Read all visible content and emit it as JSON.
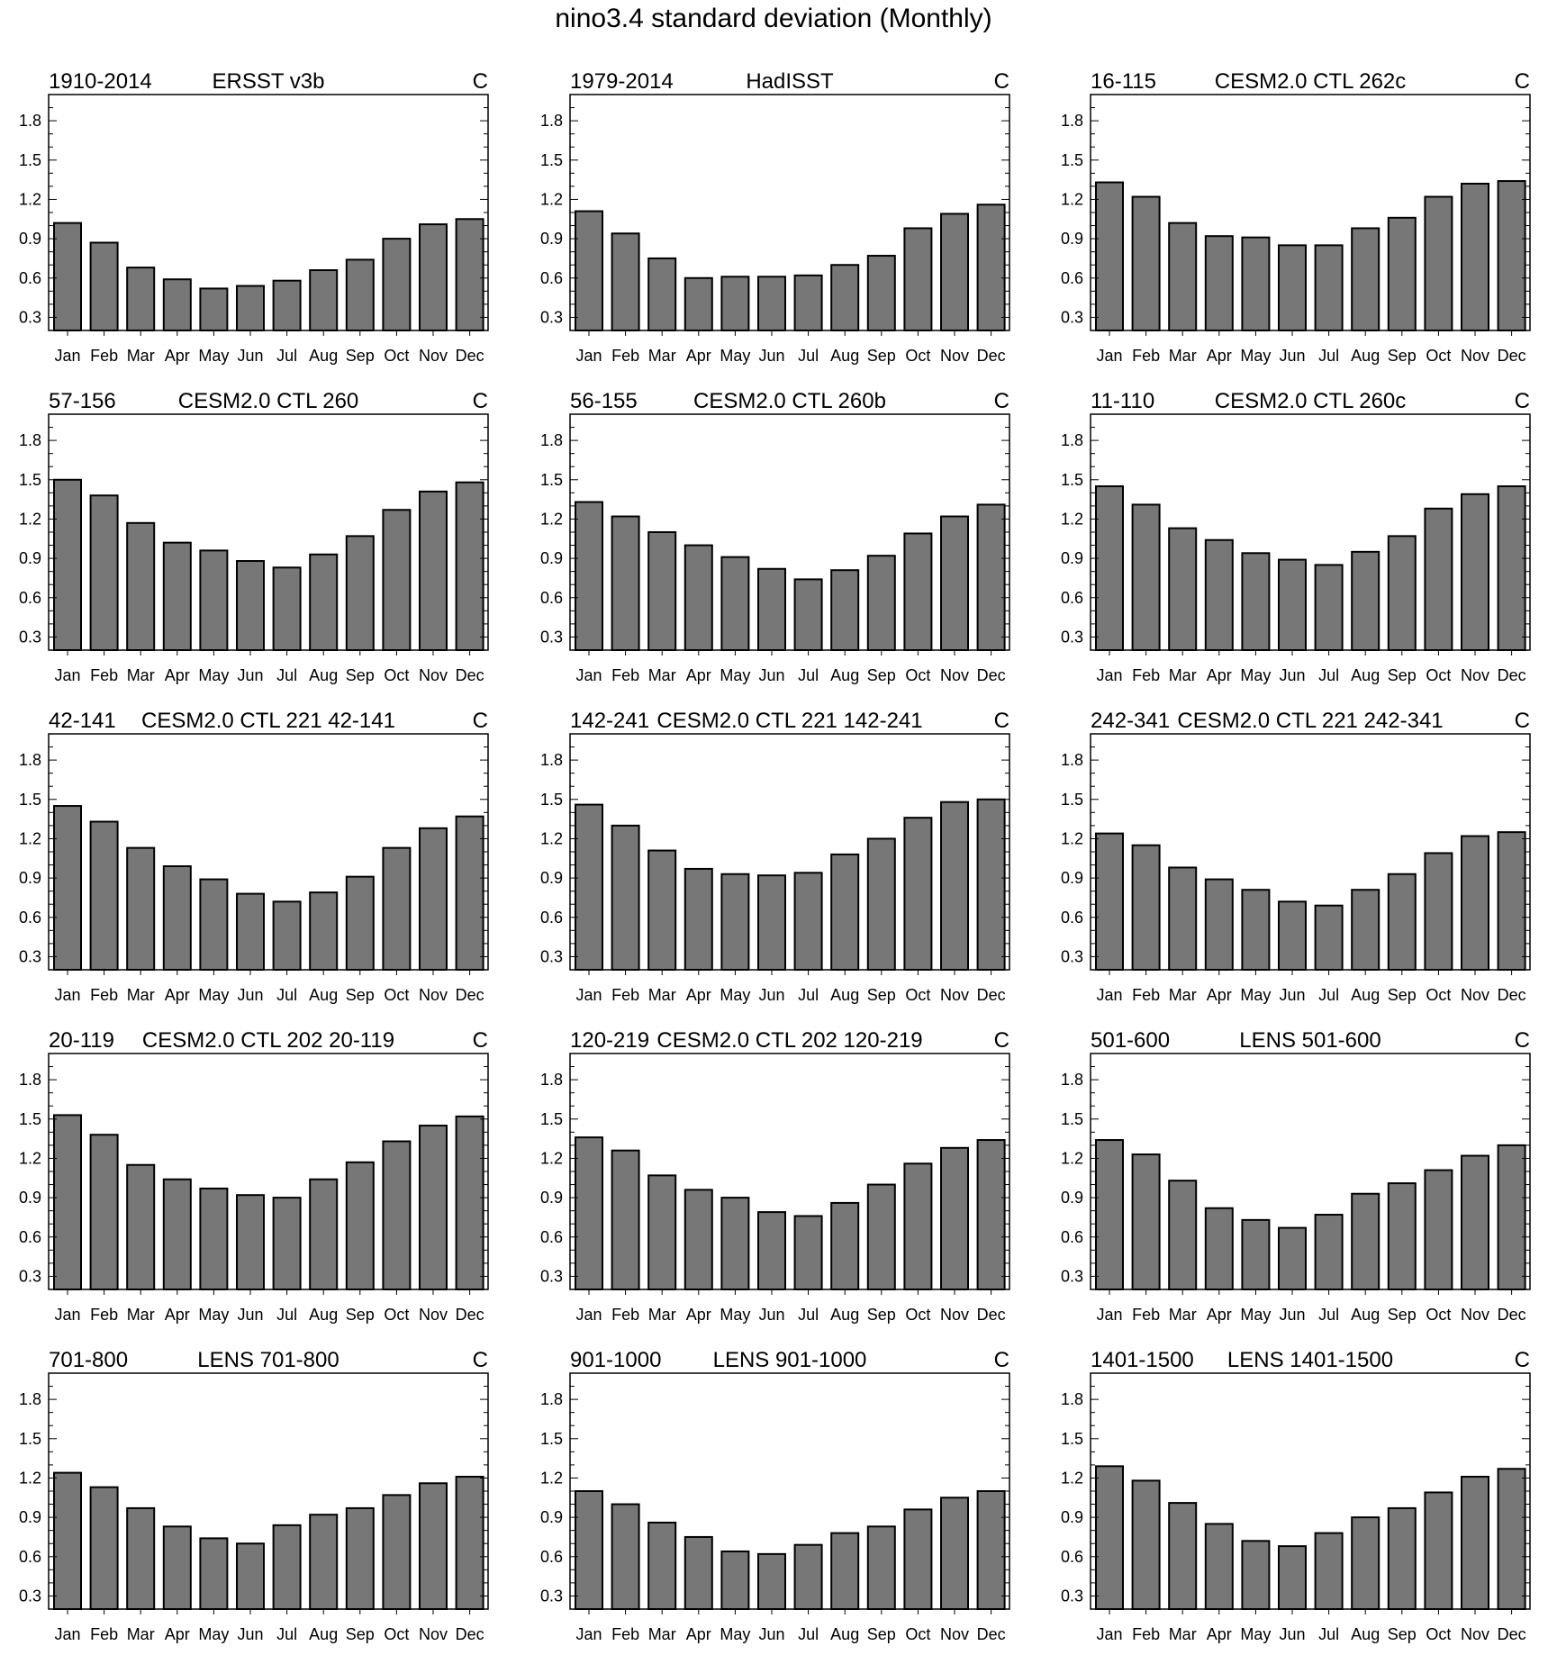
{
  "figure_title": "nino3.4 standard deviation (Monthly)",
  "chart_data": [
    {
      "type": "bar",
      "left_label": "1910-2014",
      "title": "ERSST v3b",
      "units": "C",
      "categories": [
        "Jan",
        "Feb",
        "Mar",
        "Apr",
        "May",
        "Jun",
        "Jul",
        "Aug",
        "Sep",
        "Oct",
        "Nov",
        "Dec"
      ],
      "values": [
        1.02,
        0.87,
        0.68,
        0.59,
        0.52,
        0.54,
        0.58,
        0.66,
        0.74,
        0.9,
        1.01,
        1.05
      ],
      "ylim": [
        0.2,
        2.0
      ],
      "yticks": [
        "0.3",
        "0.6",
        "0.9",
        "1.2",
        "1.5",
        "1.8"
      ]
    },
    {
      "type": "bar",
      "left_label": "1979-2014",
      "title": "HadISST",
      "units": "C",
      "categories": [
        "Jan",
        "Feb",
        "Mar",
        "Apr",
        "May",
        "Jun",
        "Jul",
        "Aug",
        "Sep",
        "Oct",
        "Nov",
        "Dec"
      ],
      "values": [
        1.11,
        0.94,
        0.75,
        0.6,
        0.61,
        0.61,
        0.62,
        0.7,
        0.77,
        0.98,
        1.09,
        1.16
      ],
      "ylim": [
        0.2,
        2.0
      ],
      "yticks": [
        "0.3",
        "0.6",
        "0.9",
        "1.2",
        "1.5",
        "1.8"
      ]
    },
    {
      "type": "bar",
      "left_label": "16-115",
      "title": "CESM2.0 CTL 262c",
      "units": "C",
      "categories": [
        "Jan",
        "Feb",
        "Mar",
        "Apr",
        "May",
        "Jun",
        "Jul",
        "Aug",
        "Sep",
        "Oct",
        "Nov",
        "Dec"
      ],
      "values": [
        1.33,
        1.22,
        1.02,
        0.92,
        0.91,
        0.85,
        0.85,
        0.98,
        1.06,
        1.22,
        1.32,
        1.34
      ],
      "ylim": [
        0.2,
        2.0
      ],
      "yticks": [
        "0.3",
        "0.6",
        "0.9",
        "1.2",
        "1.5",
        "1.8"
      ]
    },
    {
      "type": "bar",
      "left_label": "57-156",
      "title": "CESM2.0 CTL 260",
      "units": "C",
      "categories": [
        "Jan",
        "Feb",
        "Mar",
        "Apr",
        "May",
        "Jun",
        "Jul",
        "Aug",
        "Sep",
        "Oct",
        "Nov",
        "Dec"
      ],
      "values": [
        1.5,
        1.38,
        1.17,
        1.02,
        0.96,
        0.88,
        0.83,
        0.93,
        1.07,
        1.27,
        1.41,
        1.48
      ],
      "ylim": [
        0.2,
        2.0
      ],
      "yticks": [
        "0.3",
        "0.6",
        "0.9",
        "1.2",
        "1.5",
        "1.8"
      ]
    },
    {
      "type": "bar",
      "left_label": "56-155",
      "title": "CESM2.0 CTL 260b",
      "units": "C",
      "categories": [
        "Jan",
        "Feb",
        "Mar",
        "Apr",
        "May",
        "Jun",
        "Jul",
        "Aug",
        "Sep",
        "Oct",
        "Nov",
        "Dec"
      ],
      "values": [
        1.33,
        1.22,
        1.1,
        1.0,
        0.91,
        0.82,
        0.74,
        0.81,
        0.92,
        1.09,
        1.22,
        1.31
      ],
      "ylim": [
        0.2,
        2.0
      ],
      "yticks": [
        "0.3",
        "0.6",
        "0.9",
        "1.2",
        "1.5",
        "1.8"
      ]
    },
    {
      "type": "bar",
      "left_label": "11-110",
      "title": "CESM2.0 CTL 260c",
      "units": "C",
      "categories": [
        "Jan",
        "Feb",
        "Mar",
        "Apr",
        "May",
        "Jun",
        "Jul",
        "Aug",
        "Sep",
        "Oct",
        "Nov",
        "Dec"
      ],
      "values": [
        1.45,
        1.31,
        1.13,
        1.04,
        0.94,
        0.89,
        0.85,
        0.95,
        1.07,
        1.28,
        1.39,
        1.45
      ],
      "ylim": [
        0.2,
        2.0
      ],
      "yticks": [
        "0.3",
        "0.6",
        "0.9",
        "1.2",
        "1.5",
        "1.8"
      ]
    },
    {
      "type": "bar",
      "left_label": "42-141",
      "title": "CESM2.0 CTL 221 42-141",
      "units": "C",
      "categories": [
        "Jan",
        "Feb",
        "Mar",
        "Apr",
        "May",
        "Jun",
        "Jul",
        "Aug",
        "Sep",
        "Oct",
        "Nov",
        "Dec"
      ],
      "values": [
        1.45,
        1.33,
        1.13,
        0.99,
        0.89,
        0.78,
        0.72,
        0.79,
        0.91,
        1.13,
        1.28,
        1.37
      ],
      "ylim": [
        0.2,
        2.0
      ],
      "yticks": [
        "0.3",
        "0.6",
        "0.9",
        "1.2",
        "1.5",
        "1.8"
      ]
    },
    {
      "type": "bar",
      "left_label": "142-241",
      "title": "CESM2.0 CTL 221 142-241",
      "units": "C",
      "categories": [
        "Jan",
        "Feb",
        "Mar",
        "Apr",
        "May",
        "Jun",
        "Jul",
        "Aug",
        "Sep",
        "Oct",
        "Nov",
        "Dec"
      ],
      "values": [
        1.46,
        1.3,
        1.11,
        0.97,
        0.93,
        0.92,
        0.94,
        1.08,
        1.2,
        1.36,
        1.48,
        1.5
      ],
      "ylim": [
        0.2,
        2.0
      ],
      "yticks": [
        "0.3",
        "0.6",
        "0.9",
        "1.2",
        "1.5",
        "1.8"
      ]
    },
    {
      "type": "bar",
      "left_label": "242-341",
      "title": "CESM2.0 CTL 221 242-341",
      "units": "C",
      "categories": [
        "Jan",
        "Feb",
        "Mar",
        "Apr",
        "May",
        "Jun",
        "Jul",
        "Aug",
        "Sep",
        "Oct",
        "Nov",
        "Dec"
      ],
      "values": [
        1.24,
        1.15,
        0.98,
        0.89,
        0.81,
        0.72,
        0.69,
        0.81,
        0.93,
        1.09,
        1.22,
        1.25
      ],
      "ylim": [
        0.2,
        2.0
      ],
      "yticks": [
        "0.3",
        "0.6",
        "0.9",
        "1.2",
        "1.5",
        "1.8"
      ]
    },
    {
      "type": "bar",
      "left_label": "20-119",
      "title": "CESM2.0 CTL 202 20-119",
      "units": "C",
      "categories": [
        "Jan",
        "Feb",
        "Mar",
        "Apr",
        "May",
        "Jun",
        "Jul",
        "Aug",
        "Sep",
        "Oct",
        "Nov",
        "Dec"
      ],
      "values": [
        1.53,
        1.38,
        1.15,
        1.04,
        0.97,
        0.92,
        0.9,
        1.04,
        1.17,
        1.33,
        1.45,
        1.52
      ],
      "ylim": [
        0.2,
        2.0
      ],
      "yticks": [
        "0.3",
        "0.6",
        "0.9",
        "1.2",
        "1.5",
        "1.8"
      ]
    },
    {
      "type": "bar",
      "left_label": "120-219",
      "title": "CESM2.0 CTL 202 120-219",
      "units": "C",
      "categories": [
        "Jan",
        "Feb",
        "Mar",
        "Apr",
        "May",
        "Jun",
        "Jul",
        "Aug",
        "Sep",
        "Oct",
        "Nov",
        "Dec"
      ],
      "values": [
        1.36,
        1.26,
        1.07,
        0.96,
        0.9,
        0.79,
        0.76,
        0.86,
        1.0,
        1.16,
        1.28,
        1.34
      ],
      "ylim": [
        0.2,
        2.0
      ],
      "yticks": [
        "0.3",
        "0.6",
        "0.9",
        "1.2",
        "1.5",
        "1.8"
      ]
    },
    {
      "type": "bar",
      "left_label": "501-600",
      "title": "LENS 501-600",
      "units": "C",
      "categories": [
        "Jan",
        "Feb",
        "Mar",
        "Apr",
        "May",
        "Jun",
        "Jul",
        "Aug",
        "Sep",
        "Oct",
        "Nov",
        "Dec"
      ],
      "values": [
        1.34,
        1.23,
        1.03,
        0.82,
        0.73,
        0.67,
        0.77,
        0.93,
        1.01,
        1.11,
        1.22,
        1.3
      ],
      "ylim": [
        0.2,
        2.0
      ],
      "yticks": [
        "0.3",
        "0.6",
        "0.9",
        "1.2",
        "1.5",
        "1.8"
      ]
    },
    {
      "type": "bar",
      "left_label": "701-800",
      "title": "LENS 701-800",
      "units": "C",
      "categories": [
        "Jan",
        "Feb",
        "Mar",
        "Apr",
        "May",
        "Jun",
        "Jul",
        "Aug",
        "Sep",
        "Oct",
        "Nov",
        "Dec"
      ],
      "values": [
        1.24,
        1.13,
        0.97,
        0.83,
        0.74,
        0.7,
        0.84,
        0.92,
        0.97,
        1.07,
        1.16,
        1.21
      ],
      "ylim": [
        0.2,
        2.0
      ],
      "yticks": [
        "0.3",
        "0.6",
        "0.9",
        "1.2",
        "1.5",
        "1.8"
      ]
    },
    {
      "type": "bar",
      "left_label": "901-1000",
      "title": "LENS 901-1000",
      "units": "C",
      "categories": [
        "Jan",
        "Feb",
        "Mar",
        "Apr",
        "May",
        "Jun",
        "Jul",
        "Aug",
        "Sep",
        "Oct",
        "Nov",
        "Dec"
      ],
      "values": [
        1.1,
        1.0,
        0.86,
        0.75,
        0.64,
        0.62,
        0.69,
        0.78,
        0.83,
        0.96,
        1.05,
        1.1
      ],
      "ylim": [
        0.2,
        2.0
      ],
      "yticks": [
        "0.3",
        "0.6",
        "0.9",
        "1.2",
        "1.5",
        "1.8"
      ]
    },
    {
      "type": "bar",
      "left_label": "1401-1500",
      "title": "LENS 1401-1500",
      "units": "C",
      "categories": [
        "Jan",
        "Feb",
        "Mar",
        "Apr",
        "May",
        "Jun",
        "Jul",
        "Aug",
        "Sep",
        "Oct",
        "Nov",
        "Dec"
      ],
      "values": [
        1.29,
        1.18,
        1.01,
        0.85,
        0.72,
        0.68,
        0.78,
        0.9,
        0.97,
        1.09,
        1.21,
        1.27
      ],
      "ylim": [
        0.2,
        2.0
      ],
      "yticks": [
        "0.3",
        "0.6",
        "0.9",
        "1.2",
        "1.5",
        "1.8"
      ]
    }
  ]
}
